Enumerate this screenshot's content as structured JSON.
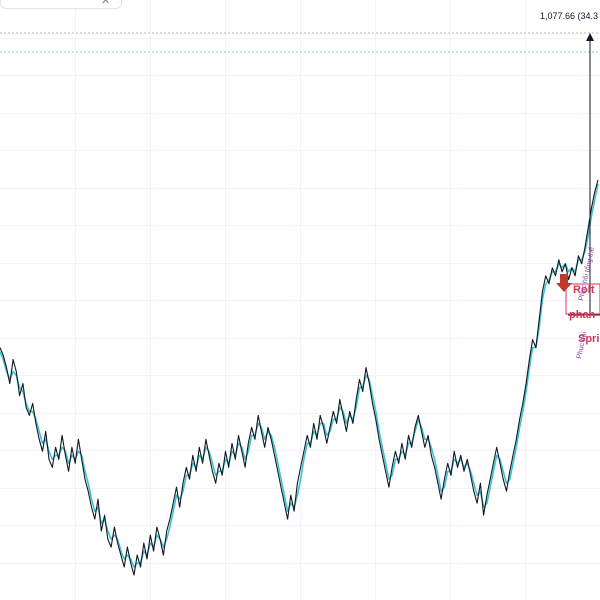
{
  "toolbar": {
    "close_glyph": "✕"
  },
  "measure": {
    "label": "1,077.66 (34.3"
  },
  "annotations": {
    "box_label_1": "Rolt",
    "box_label_2": "phan",
    "box_label_3": "Spri",
    "rotated_1": "Phục hồi tổng thể",
    "rotated_2": "Phục hồi"
  },
  "colors": {
    "price_line": "#131722",
    "ma_line": "#3ec1d3",
    "grid": "#f0f3fa",
    "measure_line": "#131722",
    "level_line_top": "#9aa0a6",
    "level_line_cyan": "#5bc0de",
    "annotation_red": "#d9365a",
    "annotation_purple": "#8e44ad",
    "arrow_red": "#c0392b"
  },
  "chart_data": {
    "type": "line",
    "title": "",
    "xlabel": "",
    "ylabel": "",
    "grid": true,
    "series": [
      {
        "values": [
          58,
          56,
          53,
          49,
          55,
          52,
          46,
          49,
          43,
          41,
          44,
          39,
          35,
          32,
          37,
          30,
          28,
          33,
          30,
          36,
          31,
          27,
          33,
          29,
          35,
          30,
          25,
          22,
          18,
          15,
          20,
          12,
          16,
          10,
          8,
          13,
          9,
          6,
          3,
          8,
          4,
          1,
          6,
          3,
          9,
          5,
          11,
          7,
          13,
          10,
          6,
          12,
          15,
          19,
          23,
          18,
          24,
          28,
          25,
          31,
          27,
          33,
          29,
          35,
          31,
          27,
          24,
          29,
          26,
          32,
          28,
          34,
          30,
          36,
          32,
          28,
          34,
          38,
          35,
          41,
          37,
          33,
          38,
          35,
          31,
          27,
          23,
          19,
          15,
          21,
          17,
          24,
          28,
          32,
          36,
          33,
          39,
          35,
          41,
          38,
          34,
          38,
          42,
          39,
          45,
          41,
          37,
          42,
          39,
          45,
          50,
          47,
          53,
          49,
          44,
          40,
          35,
          31,
          27,
          23,
          28,
          32,
          29,
          34,
          30,
          36,
          33,
          38,
          41,
          37,
          33,
          36,
          31,
          28,
          24,
          20,
          25,
          29,
          26,
          32,
          28,
          31,
          27,
          30,
          26,
          22,
          19,
          24,
          16,
          21,
          25,
          29,
          33,
          29,
          25,
          22,
          27,
          31,
          35,
          40,
          44,
          49,
          55,
          60,
          58,
          65,
          72,
          76,
          74,
          78,
          76,
          80,
          77,
          79,
          75,
          78,
          76,
          81,
          79,
          83,
          88,
          93,
          97,
          100
        ]
      },
      {
        "values": [
          57,
          55,
          52,
          50,
          52,
          51,
          48,
          47,
          44,
          42,
          42,
          40,
          37,
          34,
          35,
          32,
          30,
          31,
          31,
          33,
          32,
          29,
          31,
          30,
          32,
          31,
          27,
          24,
          20,
          17,
          18,
          14,
          15,
          12,
          10,
          11,
          10,
          7,
          5,
          6,
          5,
          3,
          4,
          4,
          7,
          6,
          9,
          8,
          11,
          10,
          8,
          10,
          13,
          17,
          21,
          20,
          22,
          26,
          26,
          29,
          28,
          31,
          30,
          33,
          32,
          29,
          26,
          27,
          27,
          30,
          29,
          32,
          31,
          34,
          33,
          30,
          32,
          36,
          36,
          39,
          38,
          35,
          37,
          36,
          33,
          29,
          25,
          21,
          17,
          19,
          18,
          21,
          25,
          30,
          34,
          34,
          37,
          36,
          39,
          39,
          36,
          37,
          40,
          40,
          43,
          42,
          39,
          41,
          40,
          43,
          48,
          48,
          51,
          50,
          46,
          42,
          37,
          33,
          29,
          25,
          26,
          30,
          30,
          32,
          31,
          34,
          34,
          37,
          40,
          38,
          35,
          35,
          33,
          30,
          26,
          22,
          23,
          27,
          27,
          30,
          29,
          30,
          28,
          29,
          27,
          24,
          21,
          22,
          18,
          19,
          23,
          27,
          31,
          30,
          27,
          24,
          25,
          29,
          33,
          38,
          42,
          47,
          53,
          58,
          58,
          63,
          70,
          74,
          75,
          77,
          77,
          79,
          78,
          79,
          77,
          78,
          77,
          80,
          80,
          82,
          86,
          91,
          95,
          99
        ]
      }
    ]
  }
}
